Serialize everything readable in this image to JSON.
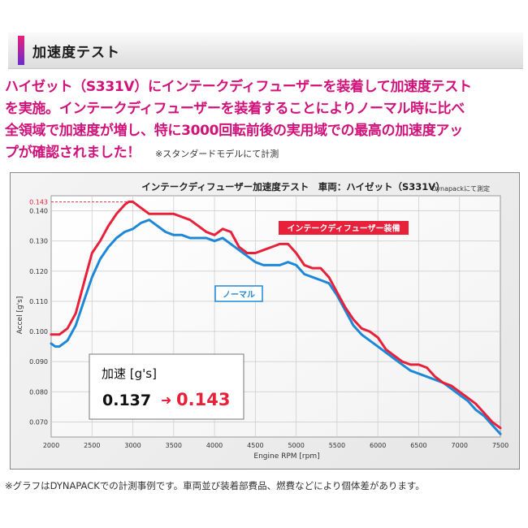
{
  "header": {
    "title": "加速度テスト"
  },
  "lead": {
    "lines": [
      "ハイゼット（S331V）にインテークディフューザーを装着して加速度テスト",
      "を実施。インテークディフューザーを装着することによりノーマル時に比べ",
      "全領域で加速度が増し、特に3000回転前後の実用域での最高の加速度アッ",
      "プが確認されました！"
    ],
    "note": "※スタンダードモデルにて計測"
  },
  "chart_data": {
    "type": "line",
    "title": "インテークディフューザー加速度テスト　車両：ハイゼット（S331V）",
    "subtitle": "Dynapackにて測定",
    "xlabel": "Engine RPM [rpm]",
    "ylabel": "Accel [g's]",
    "xlim": [
      2000,
      7500
    ],
    "ylim": [
      0.065,
      0.145
    ],
    "xticks": [
      2000,
      2500,
      3000,
      3500,
      4000,
      4500,
      5000,
      5500,
      6000,
      6500,
      7000,
      7500
    ],
    "yticks": [
      0.07,
      0.08,
      0.09,
      0.1,
      0.11,
      0.12,
      0.13,
      0.14
    ],
    "ytick_labels": [
      "0.070",
      "0.080",
      "0.090",
      "0.100",
      "0.110",
      "0.120",
      "0.130",
      "0.140"
    ],
    "peak_marker": {
      "value": 0.143,
      "label": "0.143"
    },
    "grid": true,
    "series": [
      {
        "name": "インテークディフューザー装備",
        "color": "#e8203a",
        "x": [
          2000,
          2100,
          2200,
          2300,
          2400,
          2500,
          2600,
          2700,
          2800,
          2900,
          2950,
          3000,
          3100,
          3200,
          3300,
          3400,
          3500,
          3600,
          3700,
          3800,
          3900,
          4000,
          4100,
          4200,
          4300,
          4400,
          4500,
          4600,
          4700,
          4800,
          4900,
          5000,
          5100,
          5200,
          5300,
          5400,
          5500,
          5600,
          5700,
          5800,
          5900,
          6000,
          6100,
          6200,
          6300,
          6400,
          6500,
          6600,
          6700,
          6800,
          6900,
          7000,
          7100,
          7200,
          7300,
          7400,
          7500
        ],
        "values": [
          0.099,
          0.099,
          0.101,
          0.106,
          0.116,
          0.126,
          0.13,
          0.135,
          0.139,
          0.142,
          0.143,
          0.143,
          0.141,
          0.139,
          0.139,
          0.139,
          0.139,
          0.138,
          0.137,
          0.135,
          0.133,
          0.132,
          0.134,
          0.133,
          0.128,
          0.126,
          0.126,
          0.127,
          0.128,
          0.129,
          0.129,
          0.126,
          0.122,
          0.121,
          0.121,
          0.118,
          0.113,
          0.108,
          0.104,
          0.101,
          0.1,
          0.098,
          0.094,
          0.092,
          0.09,
          0.089,
          0.089,
          0.088,
          0.085,
          0.083,
          0.082,
          0.08,
          0.078,
          0.076,
          0.073,
          0.07,
          0.068
        ]
      },
      {
        "name": "ノーマル",
        "color": "#1e88d8",
        "x": [
          2000,
          2050,
          2100,
          2200,
          2300,
          2400,
          2500,
          2600,
          2700,
          2800,
          2900,
          3000,
          3100,
          3200,
          3300,
          3400,
          3500,
          3600,
          3700,
          3800,
          3900,
          4000,
          4100,
          4200,
          4300,
          4400,
          4500,
          4600,
          4700,
          4800,
          4900,
          5000,
          5100,
          5200,
          5300,
          5400,
          5500,
          5600,
          5700,
          5800,
          5900,
          6000,
          6100,
          6200,
          6300,
          6400,
          6500,
          6600,
          6700,
          6800,
          6900,
          7000,
          7100,
          7200,
          7300,
          7400,
          7500
        ],
        "values": [
          0.096,
          0.095,
          0.095,
          0.097,
          0.102,
          0.11,
          0.118,
          0.124,
          0.128,
          0.131,
          0.133,
          0.134,
          0.136,
          0.137,
          0.135,
          0.133,
          0.132,
          0.132,
          0.131,
          0.131,
          0.131,
          0.13,
          0.131,
          0.129,
          0.127,
          0.125,
          0.123,
          0.122,
          0.122,
          0.122,
          0.123,
          0.122,
          0.119,
          0.118,
          0.117,
          0.116,
          0.112,
          0.107,
          0.102,
          0.099,
          0.097,
          0.095,
          0.093,
          0.091,
          0.089,
          0.087,
          0.086,
          0.085,
          0.084,
          0.083,
          0.081,
          0.079,
          0.077,
          0.074,
          0.072,
          0.069,
          0.066
        ]
      }
    ],
    "annotations": {
      "series_labels": [
        "インテークディフューザー装備",
        "ノーマル"
      ],
      "box_title": "加速 [g's]",
      "box_before": "0.137",
      "box_after": "0.143"
    }
  },
  "footer": {
    "note": "※グラフはDYNAPACKでの計測事例です。車両並び装着部費品、燃費などにより個体差があります。"
  }
}
